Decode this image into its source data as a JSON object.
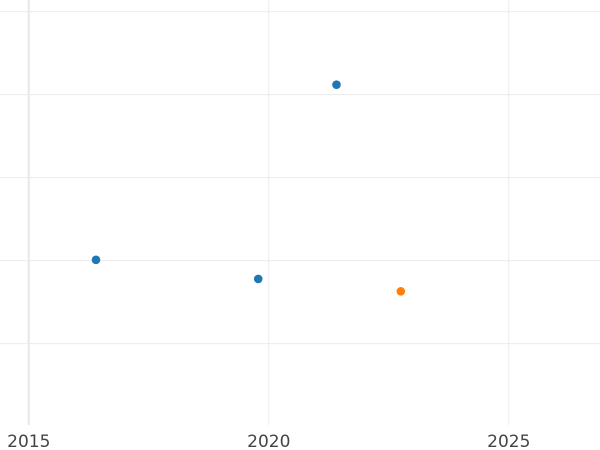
{
  "chart_data": {
    "type": "scatter",
    "title": "",
    "xlabel": "",
    "ylabel": "",
    "xlim": [
      2014.4,
      2026.9
    ],
    "ylim": [
      -0.98,
      4.14
    ],
    "x_ticks": [
      2015,
      2020,
      2025
    ],
    "x_tick_labels": [
      "2015",
      "2020",
      "2025"
    ],
    "y_gridlines": [
      0,
      1,
      2,
      3,
      4
    ],
    "y_tick_labels_shown": false,
    "grid": true,
    "series": [
      {
        "color": "#1f77b4",
        "points": [
          {
            "x": 2016.4,
            "y": 1.01
          },
          {
            "x": 2019.78,
            "y": 0.78
          },
          {
            "x": 2021.41,
            "y": 3.12
          }
        ]
      },
      {
        "color": "#ff7f0e",
        "points": [
          {
            "x": 2022.75,
            "y": 0.63
          }
        ]
      }
    ]
  }
}
